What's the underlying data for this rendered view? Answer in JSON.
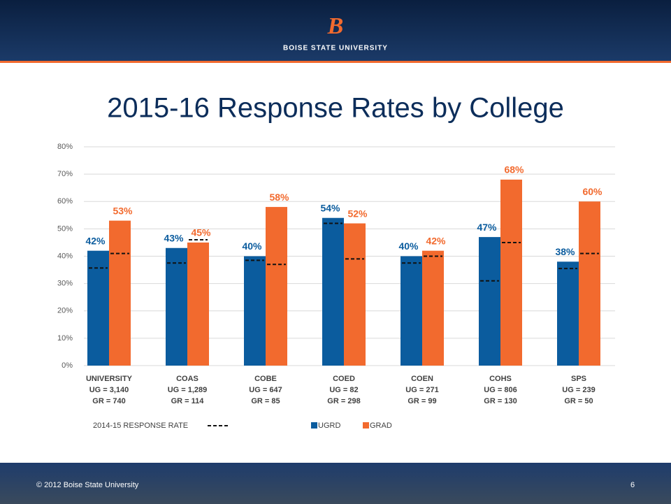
{
  "header": {
    "logo": "B",
    "university": "BOISE STATE UNIVERSITY"
  },
  "chart_data": {
    "type": "bar",
    "title": "2015-16 Response Rates by College",
    "categories": [
      [
        "UNIVERSITY",
        "UG = 3,140",
        "GR = 740"
      ],
      [
        "COAS",
        "UG = 1,289",
        "GR = 114"
      ],
      [
        "COBE",
        "UG = 647",
        "GR = 85"
      ],
      [
        "COED",
        "UG = 82",
        "GR = 298"
      ],
      [
        "COEN",
        "UG = 271",
        "GR = 99"
      ],
      [
        "COHS",
        "UG = 806",
        "GR = 130"
      ],
      [
        "SPS",
        "UG = 239",
        "GR = 50"
      ]
    ],
    "series": [
      {
        "name": "UGRD",
        "color": "#0b5c9e",
        "values": [
          42,
          43,
          40,
          54,
          40,
          47,
          38
        ],
        "value_labels": [
          "42%",
          "43%",
          "40%",
          "54%",
          "40%",
          "47%",
          "38%"
        ],
        "previous_values": [
          35.7,
          37.5,
          38.5,
          52,
          37.5,
          31,
          35.5
        ]
      },
      {
        "name": "GRAD",
        "color": "#f26a2e",
        "values": [
          53,
          45,
          58,
          52,
          42,
          68,
          60
        ],
        "value_labels": [
          "53%",
          "45%",
          "58%",
          "52%",
          "42%",
          "68%",
          "60%"
        ],
        "previous_values": [
          41,
          46,
          37,
          39,
          40,
          45,
          41
        ]
      }
    ],
    "previous_name": "2014-15  RESPONSE RATE",
    "ylim": [
      0,
      80
    ],
    "yticks": [
      {
        "value": 0,
        "label": "0%"
      },
      {
        "value": 10,
        "label": "10%"
      },
      {
        "value": 20,
        "label": "20%"
      },
      {
        "value": 30,
        "label": "30%"
      },
      {
        "value": 40,
        "label": "40%"
      },
      {
        "value": 50,
        "label": "50%"
      },
      {
        "value": 60,
        "label": "60%"
      },
      {
        "value": 70,
        "label": "70%"
      },
      {
        "value": 80,
        "label": "80%"
      }
    ],
    "grid": true
  },
  "footer": {
    "copyright": "© 2012 Boise State University",
    "page": "6"
  }
}
